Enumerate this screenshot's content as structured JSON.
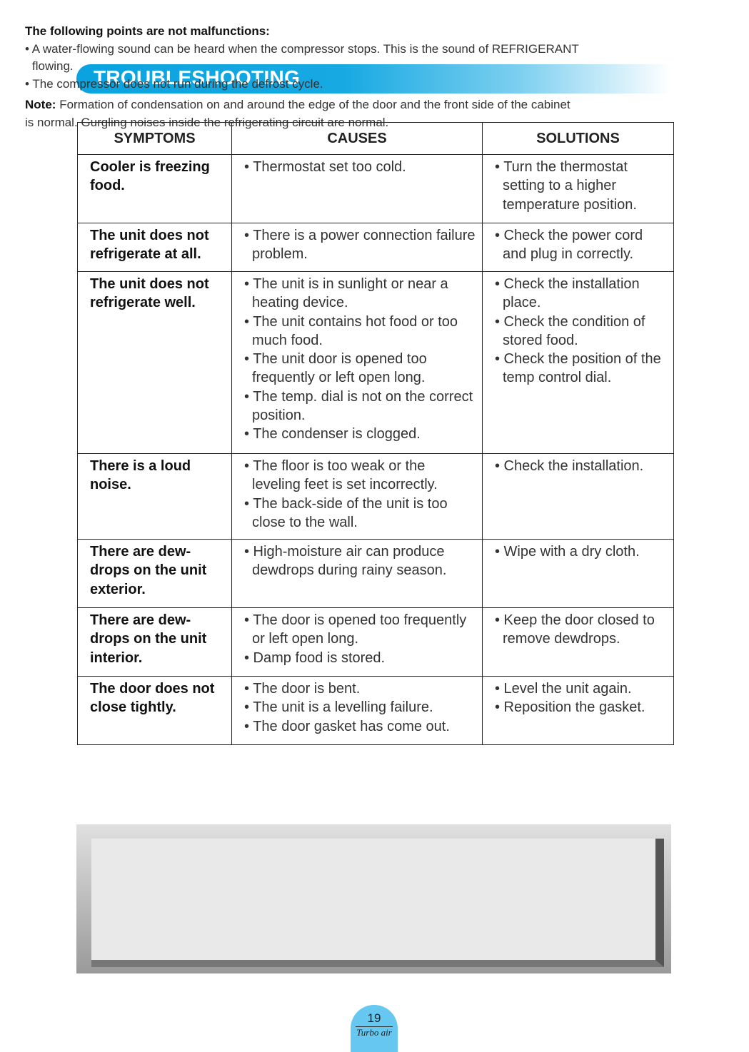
{
  "header": {
    "title": "TROUBLESHOOTING"
  },
  "table": {
    "headers": [
      "SYMPTOMS",
      "CAUSES",
      "SOLUTIONS"
    ],
    "rows": [
      {
        "symptom": "Cooler is freezing food.",
        "causes": [
          "• Thermostat set too cold."
        ],
        "solutions": [
          "• Turn the thermostat setting to a higher temperature position."
        ]
      },
      {
        "symptom": "The unit does not refrigerate at all.",
        "causes": [
          "• There is a power connection failure problem."
        ],
        "solutions": [
          "• Check the power cord and plug in correctly."
        ]
      },
      {
        "symptom": "The unit does not refrigerate well.",
        "causes": [
          "• The unit is in sunlight or near a heating device.",
          "• The unit contains hot food or too much food.",
          "• The unit door is opened too frequently or left open long.",
          "• The temp. dial is not on the correct position.",
          "• The condenser is clogged."
        ],
        "solutions": [
          "• Check the installation place.",
          "• Check the condition of stored food.",
          "• Check the position of the temp control dial."
        ]
      },
      {
        "symptom": "There is a loud noise.",
        "causes": [
          "• The floor is too weak or the leveling feet is set incorrectly.",
          "• The back-side of the unit is too close to the wall."
        ],
        "solutions": [
          "• Check the installation."
        ]
      },
      {
        "symptom": "There are dew-drops on the unit exterior.",
        "causes": [
          "• High-moisture air can produce dewdrops during rainy season."
        ],
        "solutions": [
          "• Wipe with a dry cloth."
        ]
      },
      {
        "symptom": "There are dew-drops on the unit interior.",
        "causes": [
          "• The door is opened too frequently or left open long.",
          "• Damp food is stored."
        ],
        "solutions": [
          "• Keep the door closed to remove dewdrops."
        ]
      },
      {
        "symptom": "The door does not close tightly.",
        "causes": [
          "• The door is bent.",
          "• The unit is a levelling failure.",
          "• The door gasket has come out."
        ],
        "solutions": [
          "• Level the unit again.",
          "• Reposition the gasket."
        ]
      }
    ]
  },
  "notice": {
    "title": "The following points are not malfunctions:",
    "items": [
      "• A water-flowing sound can be heard when the compressor stops. This is the sound of REFRIGERANT flowing.",
      "• The compressor does not run during the defrost cycle."
    ],
    "note_label": "Note:",
    "note_text": "Formation of condensation on and around the edge of the door and the front side of the cabinet is normal. Gurgling noises inside the refrigerating circuit are normal."
  },
  "footer": {
    "page_number": "19",
    "brand": "Turbo air"
  }
}
